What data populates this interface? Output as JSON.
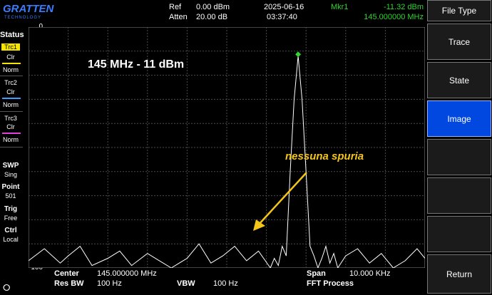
{
  "header": {
    "logo_text": "GRATTEN",
    "logo_sub": "TECHNOLOGY",
    "ref_label": "Ref",
    "ref_value": "0.00 dBm",
    "atten_label": "Atten",
    "atten_value": "20.00 dB",
    "date": "2025-06-16",
    "time": "03:37:40",
    "marker_label": "Mkr1",
    "marker_amplitude": "-11.32 dBm",
    "marker_frequency": "145.000000 MHz"
  },
  "status": {
    "title": "Status",
    "traces": [
      {
        "name": "Trc1",
        "mode": "Clr",
        "type": "Norm",
        "color": "#f7e400"
      },
      {
        "name": "Trc2",
        "mode": "Clr",
        "type": "Norm",
        "color": "#3c9cff"
      },
      {
        "name": "Trc3",
        "mode": "Clr",
        "type": "Norm",
        "color": "#e040e0"
      }
    ],
    "swp_label": "SWP",
    "swp_value": "Sing",
    "point_label": "Point",
    "point_value": "501",
    "trig_label": "Trig",
    "trig_value": "Free",
    "ctrl_label": "Ctrl",
    "ctrl_value": "Local"
  },
  "softkeys": {
    "title": "File Type",
    "items": [
      "Trace",
      "State",
      "Image",
      "",
      "",
      ""
    ],
    "active_index": 2,
    "return_label": "Return"
  },
  "footer": {
    "center_label": "Center",
    "center_value": "145.000000 MHz",
    "resbw_label": "Res BW",
    "resbw_value": "100 Hz",
    "vbw_label": "VBW",
    "vbw_value": "100 Hz",
    "span_label": "Span",
    "span_value": "10.000 KHz",
    "process": "FFT Process"
  },
  "annotations": {
    "peak": "145 MHz  - 11 dBm",
    "spur": "nessuna spuria"
  },
  "chart_data": {
    "type": "line",
    "ylim": [
      -100,
      0
    ],
    "yticks": [
      "0",
      "-10",
      "-20",
      "-30",
      "-40",
      "-50",
      "-60",
      "-70",
      "-80",
      "-90",
      "-100"
    ],
    "grid": true,
    "x": [
      0,
      4,
      8,
      10,
      13,
      16,
      20,
      23,
      26,
      30,
      33,
      36,
      40,
      43,
      46,
      49,
      52,
      55,
      58,
      61,
      62,
      63,
      64,
      65,
      66,
      67,
      68,
      69,
      70,
      71,
      72,
      73,
      74,
      75,
      76,
      77,
      78,
      80,
      83,
      86,
      89,
      92,
      95,
      98,
      100
    ],
    "y": [
      -97,
      -92,
      -98,
      -95,
      -91,
      -99,
      -96,
      -93,
      -99,
      -94,
      -97,
      -100,
      -96,
      -90,
      -98,
      -95,
      -91,
      -97,
      -93,
      -100,
      -96,
      -99,
      -91,
      -95,
      -60,
      -30,
      -12,
      -30,
      -60,
      -91,
      -95,
      -100,
      -96,
      -91,
      -98,
      -94,
      -100,
      -95,
      -92,
      -98,
      -94,
      -100,
      -97,
      -92,
      -96
    ],
    "marker": {
      "x": 68,
      "y": -11.32
    },
    "colors": {
      "trace": "#ffffff",
      "grid": "#4a4a4a",
      "marker": "#2fd52f"
    }
  }
}
